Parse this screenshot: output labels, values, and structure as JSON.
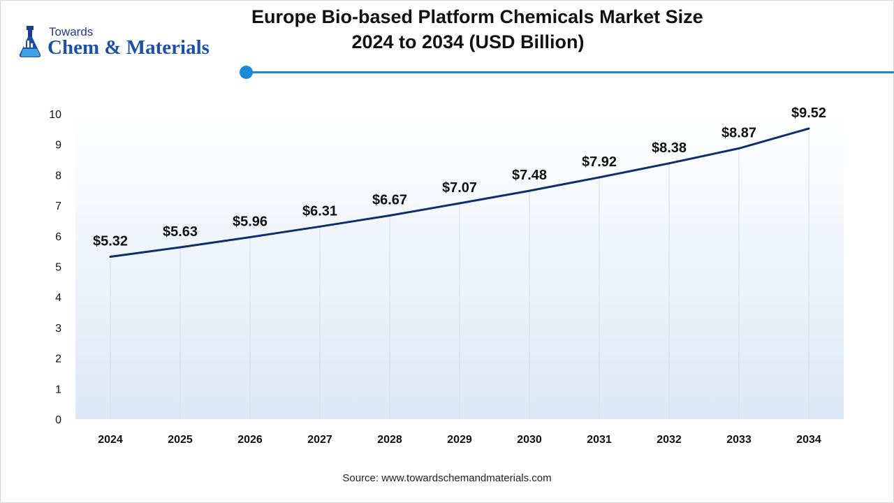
{
  "logo": {
    "top_text": "Towards",
    "main_text": "Chem & Materials",
    "icon": "flask-icon"
  },
  "title_line1": "Europe Bio-based Platform Chemicals Market Size",
  "title_line2": "2024 to 2034 (USD Billion)",
  "source": "Source: www.towardschemandmaterials.com",
  "colors": {
    "accent": "#1a8ad8",
    "line": "#0d2f6e",
    "brand": "#1d4fa3"
  },
  "chart_data": {
    "type": "line",
    "title": "Europe Bio-based Platform Chemicals Market Size 2024 to 2034 (USD Billion)",
    "xlabel": "",
    "ylabel": "",
    "categories": [
      "2024",
      "2025",
      "2026",
      "2027",
      "2028",
      "2029",
      "2030",
      "2031",
      "2032",
      "2033",
      "2034"
    ],
    "values": [
      5.32,
      5.63,
      5.96,
      6.31,
      6.67,
      7.07,
      7.48,
      7.92,
      8.38,
      8.87,
      9.52
    ],
    "data_labels": [
      "$5.32",
      "$5.63",
      "$5.96",
      "$6.31",
      "$6.67",
      "$7.07",
      "$7.48",
      "$7.92",
      "$8.38",
      "$8.87",
      "$9.52"
    ],
    "yticks": [
      "0",
      "1",
      "2",
      "3",
      "4",
      "5",
      "6",
      "7",
      "8",
      "9",
      "10"
    ],
    "ylim": [
      0,
      10
    ],
    "grid": "vertical",
    "legend": "none",
    "area_fill": "gradient light blue"
  }
}
